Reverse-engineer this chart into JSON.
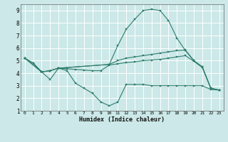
{
  "xlabel": "Humidex (Indice chaleur)",
  "bg_color": "#cce8e8",
  "grid_color": "#ffffff",
  "line_color": "#2e7d6e",
  "xlim": [
    -0.5,
    23.5
  ],
  "ylim": [
    1,
    9.5
  ],
  "xtick_labels": [
    "0",
    "1",
    "2",
    "3",
    "4",
    "5",
    "6",
    "7",
    "8",
    "9",
    "10",
    "11",
    "12",
    "13",
    "14",
    "15",
    "16",
    "17",
    "18",
    "19",
    "20",
    "21",
    "22",
    "23"
  ],
  "xtick_pos": [
    0,
    1,
    2,
    3,
    4,
    5,
    6,
    7,
    8,
    9,
    10,
    11,
    12,
    13,
    14,
    15,
    16,
    17,
    18,
    19,
    20,
    21,
    22,
    23
  ],
  "yticks": [
    1,
    2,
    3,
    4,
    5,
    6,
    7,
    8,
    9
  ],
  "lines": [
    {
      "x": [
        0,
        2,
        3,
        4,
        10,
        11,
        12,
        13,
        14,
        15,
        16,
        17,
        18,
        19,
        20,
        21,
        22,
        23
      ],
      "y": [
        5.2,
        4.1,
        4.2,
        4.4,
        4.7,
        6.2,
        7.5,
        8.3,
        9.0,
        9.1,
        9.0,
        8.2,
        6.8,
        5.8,
        5.0,
        4.5,
        2.8,
        2.65
      ]
    },
    {
      "x": [
        0,
        2,
        3,
        4,
        10,
        11,
        12,
        13,
        14,
        15,
        16,
        17,
        18,
        19,
        20,
        21,
        22,
        23
      ],
      "y": [
        5.2,
        4.1,
        4.2,
        4.4,
        4.7,
        5.0,
        5.2,
        5.3,
        5.4,
        5.5,
        5.6,
        5.7,
        5.8,
        5.85,
        5.0,
        4.5,
        2.8,
        2.65
      ]
    },
    {
      "x": [
        0,
        1,
        2,
        3,
        4,
        5,
        6,
        7,
        8,
        9,
        10,
        11,
        12,
        13,
        14,
        15,
        16,
        17,
        18,
        19,
        20,
        21,
        22,
        23
      ],
      "y": [
        5.2,
        4.8,
        4.1,
        4.2,
        4.4,
        4.35,
        4.3,
        4.25,
        4.2,
        4.2,
        4.65,
        4.75,
        4.85,
        4.9,
        5.0,
        5.05,
        5.1,
        5.2,
        5.3,
        5.4,
        4.95,
        4.45,
        2.8,
        2.65
      ]
    },
    {
      "x": [
        0,
        1,
        2,
        3,
        4,
        5,
        6,
        7,
        8,
        9,
        10,
        11,
        12,
        13,
        14,
        15,
        16,
        17,
        18,
        19,
        20,
        21,
        22,
        23
      ],
      "y": [
        5.2,
        4.8,
        4.1,
        3.5,
        4.4,
        4.2,
        3.2,
        2.8,
        2.4,
        1.7,
        1.4,
        1.7,
        3.1,
        3.1,
        3.1,
        3.0,
        3.0,
        3.0,
        3.0,
        3.0,
        3.0,
        3.0,
        2.7,
        2.65
      ]
    }
  ]
}
